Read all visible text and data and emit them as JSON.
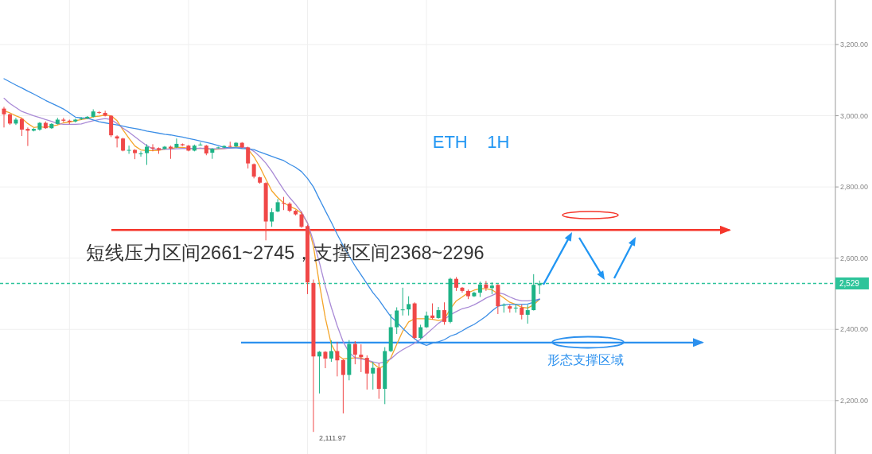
{
  "chart_data": {
    "type": "candlestick",
    "title": "ETH    1H",
    "categories": [
      null,
      null,
      null,
      null,
      null,
      null,
      null,
      null,
      null,
      null,
      null,
      null,
      null,
      null,
      null,
      null,
      null,
      null,
      null,
      null,
      null,
      null,
      null,
      null,
      null,
      null,
      null,
      null,
      null,
      null,
      null,
      null,
      null,
      null,
      null,
      null,
      null,
      null,
      null,
      null,
      null,
      null,
      null,
      null,
      null,
      null,
      null,
      null,
      null,
      null,
      null,
      null,
      null,
      null,
      null,
      null,
      null,
      null,
      null,
      null,
      null,
      null,
      null,
      null,
      null,
      null,
      null,
      null,
      null,
      null,
      null,
      null,
      null,
      null,
      null,
      null,
      null,
      null,
      null,
      null,
      null,
      null,
      null,
      null,
      null,
      null,
      null,
      null,
      null,
      null,
      null
    ],
    "ohlc": [
      [
        3020,
        3025,
        2967,
        3004
      ],
      [
        3004,
        3006,
        2974,
        2978
      ],
      [
        2978,
        2994,
        2974,
        2989
      ],
      [
        2991,
        2994,
        2943,
        2961
      ],
      [
        2963,
        2967,
        2915,
        2958
      ],
      [
        2958,
        2965,
        2956,
        2963
      ],
      [
        2961,
        2982,
        2958,
        2980
      ],
      [
        2980,
        2984,
        2963,
        2965
      ],
      [
        2965,
        2979,
        2963,
        2977
      ],
      [
        2977,
        2994,
        2975,
        2989
      ],
      [
        2989,
        2994,
        2982,
        2986
      ],
      [
        2986,
        2989,
        2976,
        2983
      ],
      [
        2984,
        2992,
        2981,
        2989
      ],
      [
        2991,
        2996,
        2988,
        2993
      ],
      [
        2993,
        2999,
        2991,
        2997
      ],
      [
        2997,
        3018,
        2995,
        3012
      ],
      [
        3010,
        3013,
        3005,
        3008
      ],
      [
        3008,
        3014,
        2998,
        3000
      ],
      [
        3000,
        3001,
        2940,
        2945
      ],
      [
        2942,
        2945,
        2911,
        2936
      ],
      [
        2936,
        2938,
        2900,
        2902
      ],
      [
        2902,
        2916,
        2893,
        2904
      ],
      [
        2904,
        2906,
        2878,
        2895
      ],
      [
        2892,
        2900,
        2885,
        2894
      ],
      [
        2895,
        2920,
        2862,
        2913
      ],
      [
        2911,
        2920,
        2900,
        2908
      ],
      [
        2909,
        2911,
        2893,
        2904
      ],
      [
        2907,
        2915,
        2905,
        2913
      ],
      [
        2913,
        2916,
        2879,
        2908
      ],
      [
        2911,
        2936,
        2909,
        2921
      ],
      [
        2920,
        2922,
        2915,
        2917
      ],
      [
        2916,
        2918,
        2900,
        2902
      ],
      [
        2902,
        2919,
        2900,
        2916
      ],
      [
        2918,
        2925,
        2916,
        2919
      ],
      [
        2916,
        2918,
        2889,
        2894
      ],
      [
        2896,
        2909,
        2879,
        2907
      ],
      [
        2910,
        2913,
        2908,
        2911
      ],
      [
        2911,
        2917,
        2909,
        2915
      ],
      [
        2915,
        2927,
        2911,
        2913
      ],
      [
        2914,
        2926,
        2912,
        2924
      ],
      [
        2924,
        2926,
        2909,
        2911
      ],
      [
        2911,
        2913,
        2852,
        2866
      ],
      [
        2864,
        2866,
        2824,
        2829
      ],
      [
        2827,
        2829,
        2809,
        2812
      ],
      [
        2811,
        2813,
        2650,
        2703
      ],
      [
        2703,
        2740,
        2688,
        2729
      ],
      [
        2731,
        2766,
        2729,
        2757
      ],
      [
        2755,
        2772,
        2735,
        2753
      ],
      [
        2753,
        2757,
        2729,
        2733
      ],
      [
        2733,
        2735,
        2720,
        2723
      ],
      [
        2723,
        2731,
        2685,
        2688
      ],
      [
        2690,
        2693,
        2499,
        2532
      ],
      [
        2530,
        2540,
        2111.97,
        2324
      ],
      [
        2324,
        2339,
        2220,
        2337
      ],
      [
        2337,
        2339,
        2291,
        2318
      ],
      [
        2318,
        2369,
        2309,
        2339
      ],
      [
        2339,
        2365,
        2268,
        2313
      ],
      [
        2314,
        2316,
        2164,
        2272
      ],
      [
        2272,
        2370,
        2257,
        2359
      ],
      [
        2359,
        2367,
        2302,
        2329
      ],
      [
        2329,
        2358,
        2280,
        2322
      ],
      [
        2320,
        2327,
        2231,
        2276
      ],
      [
        2276,
        2309,
        2231,
        2292
      ],
      [
        2291,
        2305,
        2205,
        2233
      ],
      [
        2233,
        2350,
        2190,
        2339
      ],
      [
        2339,
        2443,
        2336,
        2406
      ],
      [
        2406,
        2462,
        2387,
        2453
      ],
      [
        2454,
        2517,
        2439,
        2456
      ],
      [
        2456,
        2493,
        2439,
        2471
      ],
      [
        2473,
        2476,
        2372,
        2376
      ],
      [
        2376,
        2413,
        2372,
        2406
      ],
      [
        2406,
        2450,
        2404,
        2439
      ],
      [
        2439,
        2473,
        2428,
        2432
      ],
      [
        2432,
        2463,
        2430,
        2454
      ],
      [
        2454,
        2476,
        2413,
        2421
      ],
      [
        2421,
        2545,
        2417,
        2542
      ],
      [
        2542,
        2547,
        2508,
        2517
      ],
      [
        2517,
        2519,
        2503,
        2508
      ],
      [
        2508,
        2512,
        2485,
        2493
      ],
      [
        2493,
        2506,
        2491,
        2503
      ],
      [
        2503,
        2534,
        2491,
        2526
      ],
      [
        2526,
        2536,
        2508,
        2516
      ],
      [
        2516,
        2532,
        2499,
        2523
      ],
      [
        2525,
        2527,
        2443,
        2465
      ],
      [
        2468,
        2473,
        2447,
        2469
      ],
      [
        2465,
        2470,
        2447,
        2458
      ],
      [
        2460,
        2470,
        2447,
        2461
      ],
      [
        2461,
        2470,
        2428,
        2441
      ],
      [
        2441,
        2469,
        2416,
        2454
      ],
      [
        2454,
        2555,
        2453,
        2525
      ],
      [
        2524,
        2537,
        2499,
        2529
      ]
    ],
    "colors": [
      "#f04848",
      "#f04848",
      "#1db386",
      "#f04848",
      "#f04848",
      "#1db386",
      "#1db386",
      "#f04848",
      "#1db386",
      "#1db386",
      "#f04848",
      "#f04848",
      "#1db386",
      "#1db386",
      "#1db386",
      "#1db386",
      "#f04848",
      "#f04848",
      "#f04848",
      "#f04848",
      "#f04848",
      "#1db386",
      "#f04848",
      "#1db386",
      "#1db386",
      "#f04848",
      "#f04848",
      "#1db386",
      "#f04848",
      "#1db386",
      "#f04848",
      "#f04848",
      "#1db386",
      "#1db386",
      "#f04848",
      "#1db386",
      "#1db386",
      "#1db386",
      "#f04848",
      "#1db386",
      "#f04848",
      "#f04848",
      "#f04848",
      "#f04848",
      "#f04848",
      "#1db386",
      "#1db386",
      "#f04848",
      "#f04848",
      "#f04848",
      "#f04848",
      "#f04848",
      "#f04848",
      "#1db386",
      "#f04848",
      "#1db386",
      "#f04848",
      "#f04848",
      "#1db386",
      "#f04848",
      "#f04848",
      "#f04848",
      "#1db386",
      "#f04848",
      "#1db386",
      "#1db386",
      "#1db386",
      "#1db386",
      "#1db386",
      "#f04848",
      "#1db386",
      "#1db386",
      "#f04848",
      "#1db386",
      "#f04848",
      "#1db386",
      "#f04848",
      "#f04848",
      "#f04848",
      "#1db386",
      "#1db386",
      "#f04848",
      "#1db386",
      "#f04848",
      "#1db386",
      "#f04848",
      "#1db386",
      "#f04848",
      "#1db386",
      "#1db386",
      "#1db386"
    ],
    "series": [
      {
        "type": "line",
        "color": "#f4a52a",
        "values": [
          3014,
          3008,
          3000,
          2993,
          2978,
          2967,
          2969,
          2967,
          2971,
          2974,
          2980,
          2982,
          2986,
          2989,
          2992,
          2997,
          2999,
          3002,
          3000,
          2986,
          2960,
          2937,
          2915,
          2904,
          2902,
          2902,
          2903,
          2906,
          2907,
          2911,
          2911,
          2909,
          2907,
          2909,
          2907,
          2905,
          2906,
          2908,
          2910,
          2912,
          2912,
          2906,
          2885,
          2856,
          2822,
          2789,
          2770,
          2755,
          2746,
          2738,
          2726,
          2699,
          2633,
          2528,
          2432,
          2358,
          2328,
          2317,
          2319,
          2320,
          2320,
          2314,
          2305,
          2291,
          2298,
          2320,
          2358,
          2395,
          2421,
          2430,
          2430,
          2430,
          2428,
          2425,
          2428,
          2458,
          2480,
          2491,
          2503,
          2510,
          2514,
          2514,
          2511,
          2500,
          2488,
          2476,
          2470,
          2462,
          2460,
          2469,
          2484
        ]
      },
      {
        "type": "line",
        "color": "#a98ad6",
        "values": [
          3049,
          3034,
          3023,
          3012,
          3006,
          3000,
          2995,
          2989,
          2984,
          2978,
          2976,
          2976,
          2976,
          2977,
          2982,
          2986,
          2989,
          2992,
          2989,
          2978,
          2965,
          2954,
          2941,
          2928,
          2916,
          2907,
          2905,
          2906,
          2906,
          2907,
          2908,
          2908,
          2908,
          2909,
          2908,
          2907,
          2907,
          2908,
          2909,
          2910,
          2911,
          2910,
          2900,
          2885,
          2867,
          2844,
          2818,
          2792,
          2770,
          2751,
          2729,
          2699,
          2648,
          2588,
          2521,
          2462,
          2410,
          2365,
          2335,
          2320,
          2317,
          2314,
          2309,
          2305,
          2309,
          2317,
          2332,
          2343,
          2352,
          2361,
          2372,
          2387,
          2402,
          2417,
          2428,
          2441,
          2450,
          2458,
          2462,
          2469,
          2478,
          2488,
          2495,
          2503,
          2499,
          2491,
          2484,
          2480,
          2480,
          2482,
          2485
        ]
      },
      {
        "type": "line",
        "color": "#3b8ee6",
        "values": [
          3104,
          3095,
          3086,
          3078,
          3069,
          3061,
          3052,
          3043,
          3035,
          3027,
          3019,
          3008,
          2996,
          2994,
          2993,
          2988,
          2983,
          2980,
          2977,
          2974,
          2971,
          2967,
          2964,
          2961,
          2957,
          2954,
          2951,
          2948,
          2946,
          2943,
          2940,
          2936,
          2933,
          2929,
          2925,
          2921,
          2916,
          2911,
          2910,
          2910,
          2908,
          2907,
          2905,
          2898,
          2892,
          2886,
          2880,
          2874,
          2864,
          2855,
          2843,
          2824,
          2800,
          2766,
          2733,
          2701,
          2667,
          2635,
          2606,
          2578,
          2553,
          2528,
          2503,
          2483,
          2459,
          2436,
          2420,
          2403,
          2387,
          2374,
          2361,
          2355,
          2361,
          2365,
          2371,
          2381,
          2387,
          2396,
          2406,
          2414,
          2425,
          2437,
          2452,
          2465,
          2469,
          2470,
          2470,
          2470,
          2471,
          2476,
          2485
        ]
      }
    ],
    "ylim": [
      2050,
      3325
    ],
    "yticks": [
      {
        "value": 3200,
        "label": "3,200.00"
      },
      {
        "value": 3000,
        "label": "3,000.00"
      },
      {
        "value": 2800,
        "label": "2,800.00"
      },
      {
        "value": 2600,
        "label": "2,600.00"
      },
      {
        "value": 2400,
        "label": "2,400.00"
      },
      {
        "value": 2200,
        "label": "2,200.00"
      }
    ],
    "tick_labels": "y",
    "grid": true,
    "ref_lines": [
      {
        "axis": "y",
        "value": 2679,
        "color": "#f5362b"
      },
      {
        "axis": "y",
        "value": 2363,
        "color": "#2b90ee",
        "label": "形态支撑区域"
      },
      {
        "axis": "y",
        "value": 2529,
        "color": "#2dc49a",
        "line_style": "dashed",
        "label": "2,529"
      }
    ],
    "annotations": [
      "短线压力区间2661~2745，支撑区间2368~2296",
      "2,111.97"
    ]
  }
}
